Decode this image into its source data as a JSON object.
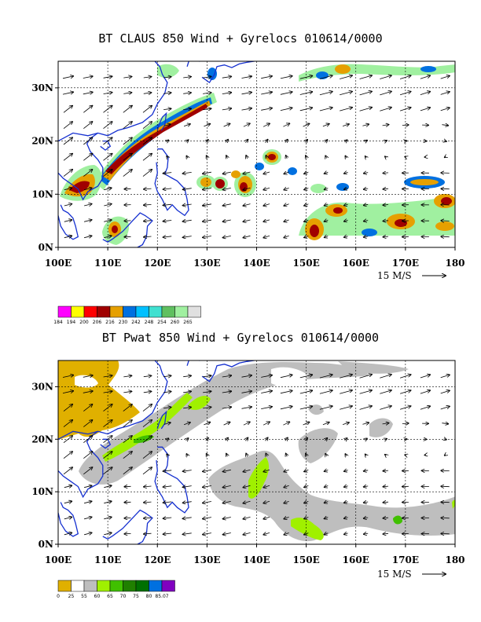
{
  "panels": [
    {
      "title": "BT CLAUS 850 Wind + Gyrelocs 010614/0000",
      "xticks": [
        "100E",
        "110E",
        "120E",
        "130E",
        "140E",
        "150E",
        "160E",
        "170E",
        "180"
      ],
      "yticks": [
        "0N",
        "10N",
        "20N",
        "30N"
      ],
      "ref_vector": "15 M/S",
      "colorbar": {
        "colors": [
          "#ff00ff",
          "#ffff00",
          "#ff0000",
          "#a00000",
          "#e6a000",
          "#0070e0",
          "#00c0ff",
          "#40e0d0",
          "#60c060",
          "#a0f0a0",
          "#e0e0e0"
        ],
        "labels": [
          "184",
          "194",
          "200",
          "206",
          "216",
          "230",
          "242",
          "248",
          "254",
          "260",
          "265"
        ]
      }
    },
    {
      "title": "BT Pwat 850 Wind + Gyrelocs 010614/0000",
      "xticks": [
        "100E",
        "110E",
        "120E",
        "130E",
        "140E",
        "150E",
        "160E",
        "170E",
        "180"
      ],
      "yticks": [
        "0N",
        "10N",
        "20N",
        "30N"
      ],
      "ref_vector": "15 M/S",
      "colorbar": {
        "colors": [
          "#e0b000",
          "#ffffff",
          "#bebebe",
          "#a0f000",
          "#40c000",
          "#208000",
          "#007000",
          "#0070e0",
          "#8000c0"
        ],
        "labels": [
          "0",
          "25",
          "55",
          "60",
          "65",
          "70",
          "75",
          "80",
          "85.07"
        ]
      }
    }
  ]
}
